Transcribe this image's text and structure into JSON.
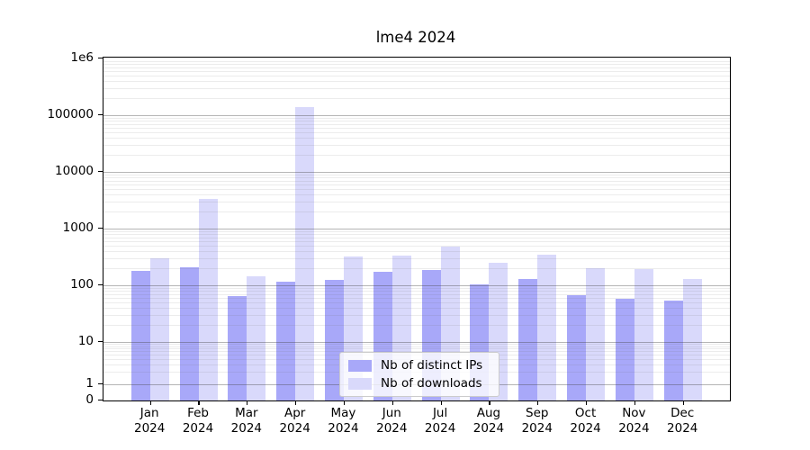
{
  "title": "lme4 2024",
  "colors": {
    "bar_ips": "#a8a8f9",
    "bar_downloads": "#d9d9fb",
    "grid_major": "#b3b3b3",
    "grid_minor": "#e7e7e7",
    "frame": "#000000",
    "legend_border": "#cccccc"
  },
  "legend": {
    "items": [
      {
        "label": "Nb of distinct IPs",
        "color_key": "bar_ips"
      },
      {
        "label": "Nb of downloads",
        "color_key": "bar_downloads"
      }
    ]
  },
  "y_axis": {
    "ticks": [
      {
        "label": "1e6",
        "value": 1000000
      },
      {
        "label": "100000",
        "value": 100000
      },
      {
        "label": "10000",
        "value": 10000
      },
      {
        "label": "1000",
        "value": 1000
      },
      {
        "label": "100",
        "value": 100
      },
      {
        "label": "10",
        "value": 10
      },
      {
        "label": "1",
        "value": 1
      },
      {
        "label": "0",
        "value": 0
      }
    ]
  },
  "chart_data": {
    "type": "bar",
    "title": "lme4 2024",
    "categories": [
      "Jan 2024",
      "Feb 2024",
      "Mar 2024",
      "Apr 2024",
      "May 2024",
      "Jun 2024",
      "Jul 2024",
      "Aug 2024",
      "Sep 2024",
      "Oct 2024",
      "Nov 2024",
      "Dec 2024"
    ],
    "series": [
      {
        "name": "Nb of distinct IPs",
        "values": [
          180,
          210,
          65,
          115,
          125,
          170,
          185,
          105,
          130,
          67,
          58,
          54
        ]
      },
      {
        "name": "Nb of downloads",
        "values": [
          300,
          3400,
          145,
          140000,
          320,
          335,
          480,
          250,
          350,
          200,
          195,
          130
        ]
      }
    ],
    "xlabel": "",
    "ylabel": "",
    "yscale": "log-with-zero (symlog-like)",
    "ylim": [
      0,
      1000000
    ],
    "grid": "horizontal major + minor log gridlines",
    "legend_position": "lower center"
  }
}
